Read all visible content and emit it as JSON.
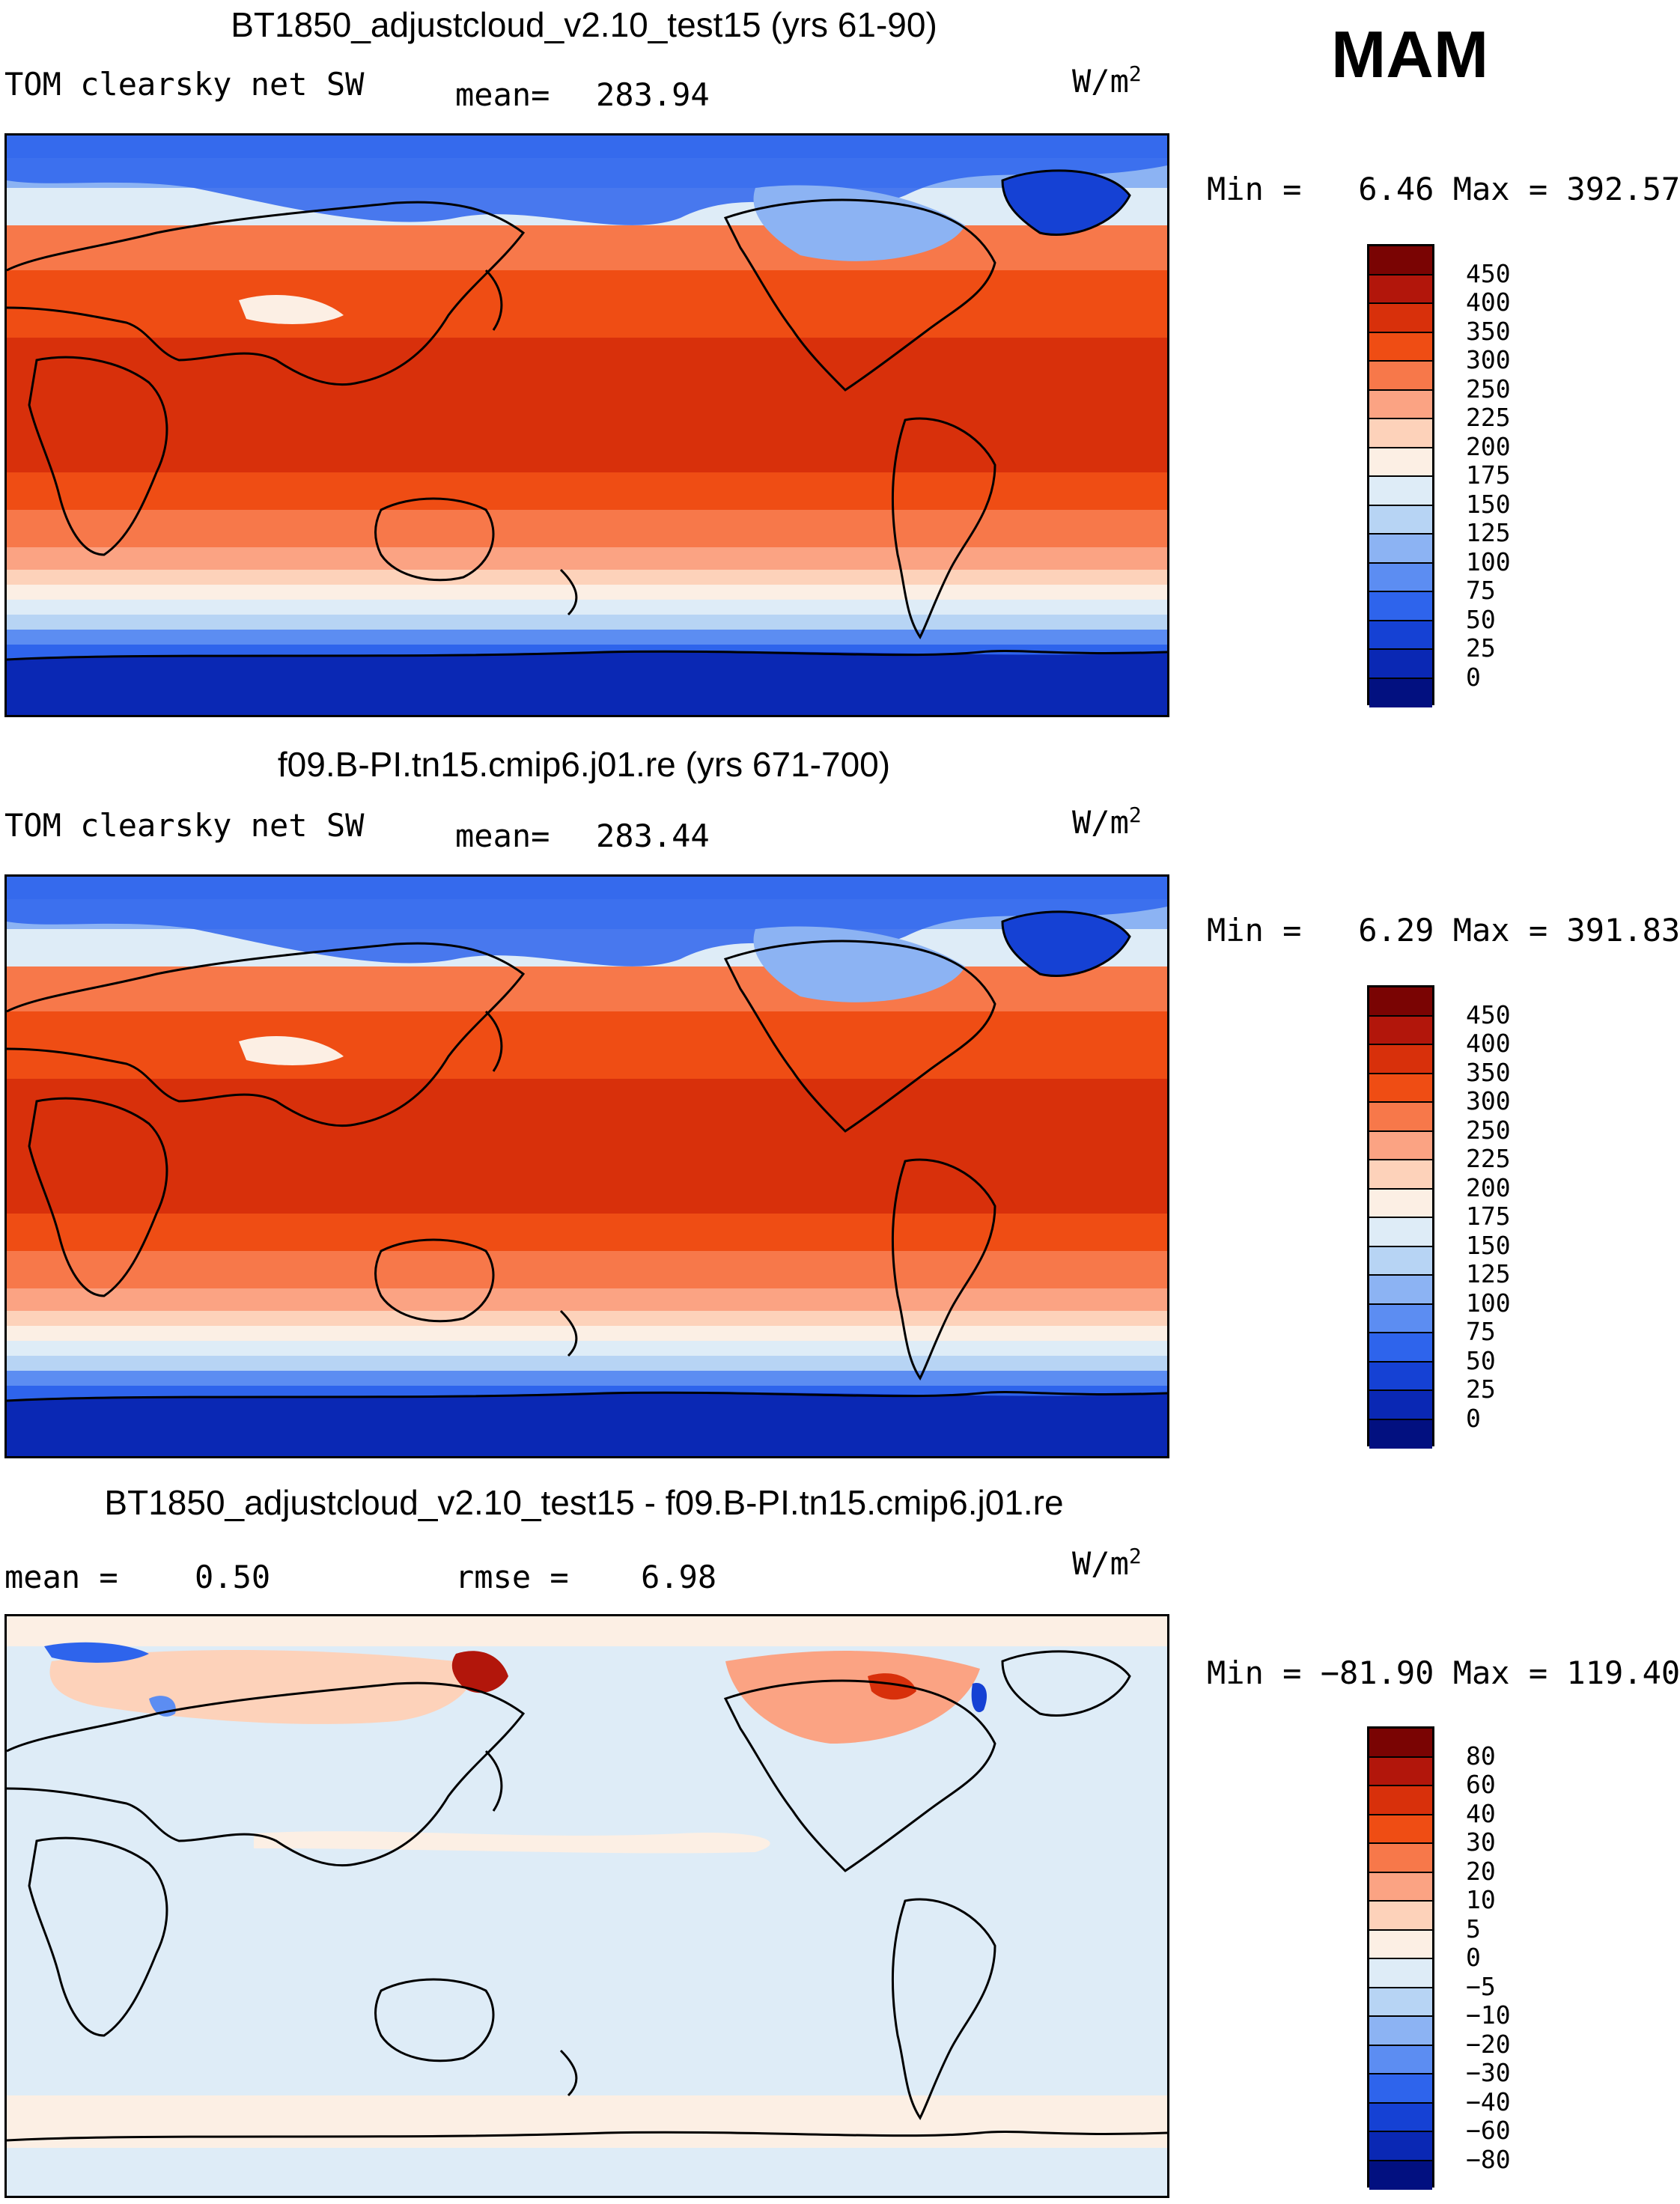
{
  "season": "MAM",
  "variable": "TOM clearsky net SW",
  "units_base": "W/m",
  "units_exp": "2",
  "panels": [
    {
      "title": "BT1850_adjustcloud_v2.10_test15 (yrs 61-90)",
      "stat1_label": "mean=",
      "stat1_value": "283.94",
      "minmax": "Min =   6.46 Max = 392.57",
      "colorbar": {
        "levels": [
          "450",
          "400",
          "350",
          "300",
          "250",
          "225",
          "200",
          "175",
          "150",
          "125",
          "100",
          "75",
          "50",
          "25",
          "0"
        ],
        "colors": [
          "#7a0403",
          "#b2160b",
          "#d8300b",
          "#ef4d14",
          "#f7784a",
          "#fba383",
          "#fdd2ba",
          "#fcefe4",
          "#deecf7",
          "#b7d4f4",
          "#8cb3f3",
          "#5c8df2",
          "#2e64ec",
          "#1541d4",
          "#0a28b4",
          "#021080"
        ]
      }
    },
    {
      "title": "f09.B-PI.tn15.cmip6.j01.re (yrs 671-700)",
      "stat1_label": "mean=",
      "stat1_value": "283.44",
      "minmax": "Min =   6.29 Max = 391.83",
      "colorbar": {
        "levels": [
          "450",
          "400",
          "350",
          "300",
          "250",
          "225",
          "200",
          "175",
          "150",
          "125",
          "100",
          "75",
          "50",
          "25",
          "0"
        ],
        "colors": [
          "#7a0403",
          "#b2160b",
          "#d8300b",
          "#ef4d14",
          "#f7784a",
          "#fba383",
          "#fdd2ba",
          "#fcefe4",
          "#deecf7",
          "#b7d4f4",
          "#8cb3f3",
          "#5c8df2",
          "#2e64ec",
          "#1541d4",
          "#0a28b4",
          "#021080"
        ]
      }
    },
    {
      "title": "BT1850_adjustcloud_v2.10_test15 - f09.B-PI.tn15.cmip6.j01.re",
      "stat1_label": "mean =",
      "stat1_value": "0.50",
      "stat2_label": "rmse =",
      "stat2_value": "6.98",
      "minmax": "Min = −81.90 Max = 119.40",
      "colorbar": {
        "levels": [
          "80",
          "60",
          "40",
          "30",
          "20",
          "10",
          "5",
          "0",
          "−5",
          "−10",
          "−20",
          "−30",
          "−40",
          "−60",
          "−80"
        ],
        "colors": [
          "#7a0403",
          "#b2160b",
          "#d8300b",
          "#ef4d14",
          "#f7784a",
          "#fba383",
          "#fdd2ba",
          "#fcefe4",
          "#deecf7",
          "#b7d4f4",
          "#8cb3f3",
          "#5c8df2",
          "#2e64ec",
          "#1541d4",
          "#0a28b4",
          "#021080"
        ]
      }
    }
  ]
}
